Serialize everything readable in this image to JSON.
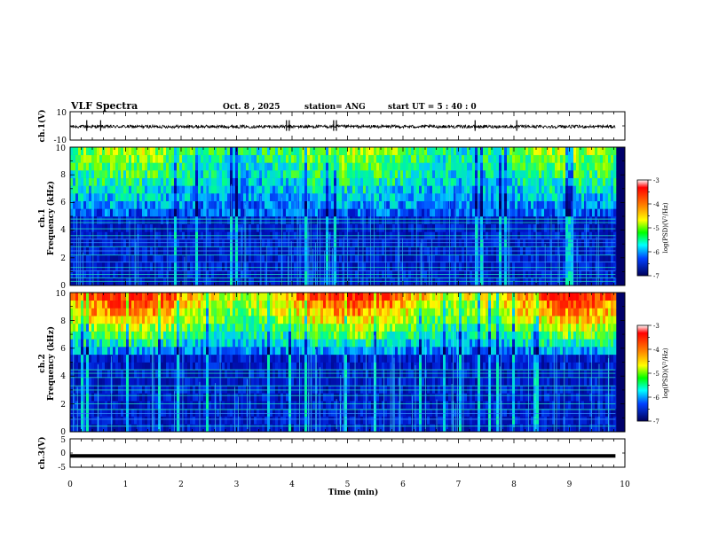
{
  "header": {
    "title": "VLF Spectra",
    "date": "Oct. 8 , 2025",
    "station": "station= ANG",
    "start": "start  UT =   5 : 40 : 0"
  },
  "chart_data": [
    {
      "type": "line",
      "name": "ch1-waveform",
      "ylabel": "ch.1(V)",
      "yticks": [
        "10",
        "-10"
      ],
      "ylim": [
        -10,
        10
      ],
      "baseline": -0.5,
      "xlim": [
        0,
        10
      ],
      "data_end_min": 9.83
    },
    {
      "type": "heatmap",
      "name": "ch1-spectrogram",
      "ylabel": "Frequency  (kHz)",
      "channel_label": "ch.1",
      "yticks": [
        "0",
        "2",
        "4",
        "6",
        "8",
        "10"
      ],
      "ylim": [
        0,
        10
      ],
      "xlim": [
        0,
        10
      ],
      "data_end_min": 9.83,
      "noise_floor_khz": 5,
      "colorbar": {
        "label": "log(PSD)(V²/Hz)",
        "ticks": [
          "-3",
          "-4",
          "-5",
          "-6",
          "-7"
        ],
        "range": [
          -7,
          -3
        ]
      },
      "spectral_lines_khz": [
        0.3,
        0.55,
        0.8,
        1.05,
        1.3,
        1.7,
        2.2,
        2.5,
        2.8,
        3.1,
        3.35,
        3.6,
        4.1,
        4.55,
        4.8
      ]
    },
    {
      "type": "heatmap",
      "name": "ch2-spectrogram",
      "ylabel": "Frequency  (kHz)",
      "channel_label": "ch.2",
      "yticks": [
        "0",
        "2",
        "4",
        "6",
        "8",
        "10"
      ],
      "ylim": [
        0,
        10
      ],
      "xlim": [
        0,
        10
      ],
      "data_end_min": 9.83,
      "noise_floor_khz": 5.5,
      "colorbar": {
        "label": "log(PSD)(V²/Hz)",
        "ticks": [
          "-3",
          "-4",
          "-5",
          "-6",
          "-7"
        ],
        "range": [
          -7,
          -3
        ]
      },
      "spectral_lines_khz": [
        0.4,
        0.9,
        1.3,
        1.6,
        2.0,
        2.6,
        3.0,
        3.3,
        3.9,
        4.2,
        4.45
      ]
    },
    {
      "type": "line",
      "name": "ch3-waveform",
      "ylabel": "ch.3(V)",
      "yticks": [
        "5",
        "0",
        "-5"
      ],
      "ylim": [
        -5,
        5
      ],
      "baseline": -1,
      "xlim": [
        0,
        10
      ],
      "data_end_min": 9.83
    }
  ],
  "x_axis": {
    "label": "Time  (min)",
    "ticks": [
      "0",
      "1",
      "2",
      "3",
      "4",
      "5",
      "6",
      "7",
      "8",
      "9",
      "10"
    ]
  }
}
